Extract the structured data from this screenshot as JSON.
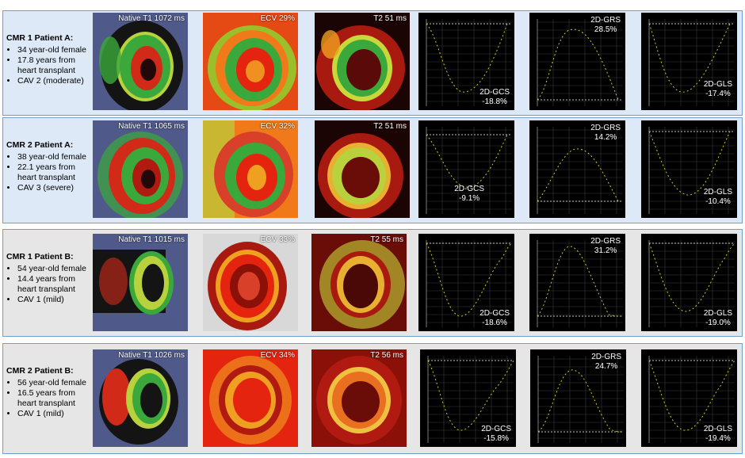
{
  "colors": {
    "row_a_bg": "#dde9f6",
    "row_b_bg": "#e6e6e6",
    "border": "#6f9fce",
    "plot_bg": "#000000",
    "curve": "#c8c832"
  },
  "rows": [
    {
      "title": "CMR 1 Patient A:",
      "bullets": [
        "34 year-old female",
        "17.8 years from heart transplant",
        "CAV 2 (moderate)"
      ],
      "t1": "Native T1 1072 ms",
      "ecv": "ECV 29%",
      "t2": "T2 51 ms",
      "gcs": {
        "name": "2D-GCS",
        "value": "-18.8%"
      },
      "grs": {
        "name": "2D-GRS",
        "value": "28.5%"
      },
      "gls": {
        "name": "2D-GLS",
        "value": "-17.4%"
      }
    },
    {
      "title": "CMR 2 Patient A:",
      "bullets": [
        "38 year-old female",
        "22.1 years from heart transplant",
        "CAV 3 (severe)"
      ],
      "t1": "Native T1 1065 ms",
      "ecv": "ECV 32%",
      "t2": "T2 51 ms",
      "gcs": {
        "name": "2D-GCS",
        "value": "-9.1%"
      },
      "grs": {
        "name": "2D-GRS",
        "value": "14.2%"
      },
      "gls": {
        "name": "2D-GLS",
        "value": "-10.4%"
      }
    },
    {
      "title": "CMR 1 Patient B:",
      "bullets": [
        "54 year-old female",
        "14.4 years from heart transplant",
        "CAV 1 (mild)"
      ],
      "t1": "Native T1 1015 ms",
      "ecv": "ECV 33%",
      "t2": "T2 55 ms",
      "gcs": {
        "name": "2D-GCS",
        "value": "-18.6%"
      },
      "grs": {
        "name": "2D-GRS",
        "value": "31.2%"
      },
      "gls": {
        "name": "2D-GLS",
        "value": "-19.0%"
      }
    },
    {
      "title": "CMR 2 Patient B:",
      "bullets": [
        "56 year-old female",
        "16.5 years from heart transplant",
        "CAV 1 (mild)"
      ],
      "t1": "Native T1 1026 ms",
      "ecv": "ECV 34%",
      "t2": "T2 56 ms",
      "gcs": {
        "name": "2D-GCS",
        "value": "-15.8%"
      },
      "grs": {
        "name": "2D-GRS",
        "value": "24.7%"
      },
      "gls": {
        "name": "2D-GLS",
        "value": "-19.4%"
      }
    }
  ]
}
